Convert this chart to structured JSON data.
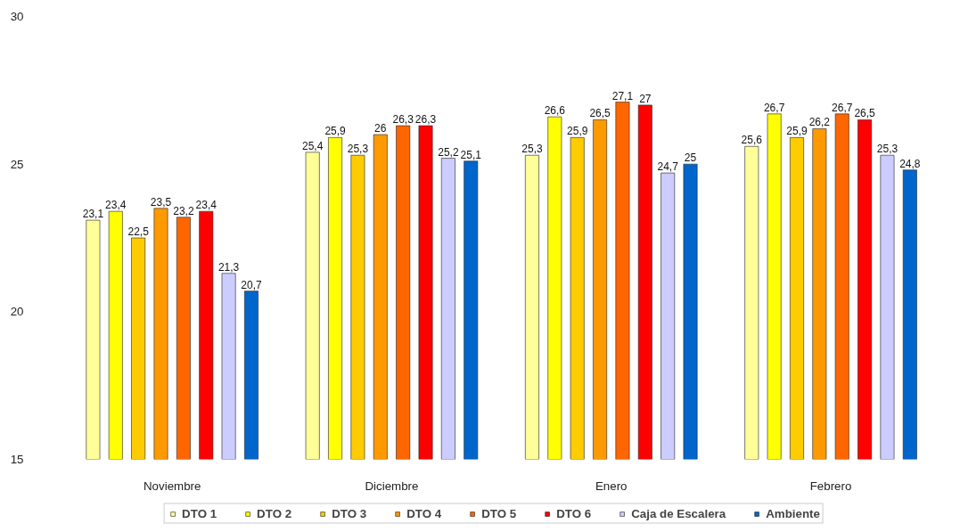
{
  "chart_data": {
    "type": "bar",
    "categories": [
      "Noviembre",
      "Diciembre",
      "Enero",
      "Febrero"
    ],
    "series": [
      {
        "name": "DTO 1",
        "color": "#ffff99",
        "values": [
          23.1,
          25.4,
          25.3,
          25.6
        ],
        "value_labels": [
          "23,1",
          "25,4",
          "25,3",
          "25,6"
        ]
      },
      {
        "name": "DTO 2",
        "color": "#ffff00",
        "values": [
          23.4,
          25.9,
          26.6,
          26.7
        ],
        "value_labels": [
          "23,4",
          "25,9",
          "26,6",
          "26,7"
        ]
      },
      {
        "name": "DTO 3",
        "color": "#ffcc00",
        "values": [
          22.5,
          25.3,
          25.9,
          25.9
        ],
        "value_labels": [
          "22,5",
          "25,3",
          "25,9",
          "25,9"
        ]
      },
      {
        "name": "DTO 4",
        "color": "#ff9900",
        "values": [
          23.5,
          26,
          26.5,
          26.2
        ],
        "value_labels": [
          "23,5",
          "26",
          "26,5",
          "26,2"
        ]
      },
      {
        "name": "DTO 5",
        "color": "#ff6600",
        "values": [
          23.2,
          26.3,
          27.1,
          26.7
        ],
        "value_labels": [
          "23,2",
          "26,3",
          "27,1",
          "26,7"
        ]
      },
      {
        "name": "DTO 6",
        "color": "#ff0000",
        "values": [
          23.4,
          26.3,
          27,
          26.5
        ],
        "value_labels": [
          "23,4",
          "26,3",
          "27",
          "26,5"
        ]
      },
      {
        "name": "Caja de Escalera",
        "color": "#ccccff",
        "values": [
          21.3,
          25.2,
          24.7,
          25.3
        ],
        "value_labels": [
          "21,3",
          "25,2",
          "24,7",
          "25,3"
        ]
      },
      {
        "name": "Ambiente",
        "color": "#0066cc",
        "values": [
          20.7,
          25.1,
          25,
          24.8
        ],
        "value_labels": [
          "20,7",
          "25,1",
          "25",
          "24,8"
        ]
      }
    ],
    "ylim": [
      15,
      30
    ],
    "yticks": [
      15,
      20,
      25,
      30
    ],
    "grid": false,
    "legend": "bottom"
  }
}
